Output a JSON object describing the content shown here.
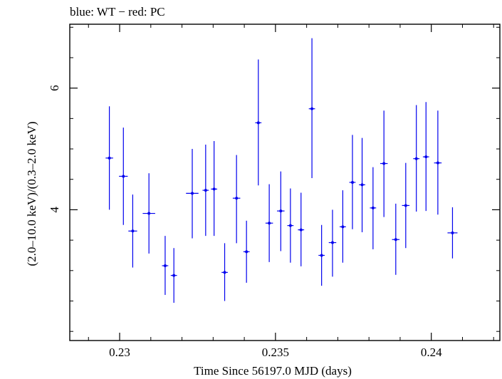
{
  "chart_data": {
    "type": "scatter",
    "title": "blue: WT − red: PC",
    "xlabel": "Time Since 56197.0 MJD (days)",
    "ylabel": "(2.0–10.0 keV)/(0.3–2.0 keV)",
    "xlim": [
      0.2284,
      0.2422
    ],
    "ylim": [
      1.85,
      7.05
    ],
    "xticks": [
      0.23,
      0.235,
      0.24
    ],
    "xtick_labels": [
      "0.23",
      "0.235",
      "0.24"
    ],
    "yticks": [
      4,
      6
    ],
    "ytick_labels": [
      "4",
      "6"
    ],
    "grid": false,
    "series": [
      {
        "color": "#0000ee",
        "points": [
          {
            "x": 0.22967,
            "y": 4.85,
            "xerr": 0.00012,
            "ylo": 4.0,
            "yhi": 5.7
          },
          {
            "x": 0.23012,
            "y": 4.55,
            "xerr": 0.00014,
            "ylo": 3.75,
            "yhi": 5.35
          },
          {
            "x": 0.23042,
            "y": 3.65,
            "xerr": 0.00014,
            "ylo": 3.05,
            "yhi": 4.25
          },
          {
            "x": 0.23094,
            "y": 3.94,
            "xerr": 0.0002,
            "ylo": 3.28,
            "yhi": 4.6
          },
          {
            "x": 0.23146,
            "y": 3.08,
            "xerr": 0.0001,
            "ylo": 2.6,
            "yhi": 3.57
          },
          {
            "x": 0.23174,
            "y": 2.92,
            "xerr": 0.0001,
            "ylo": 2.47,
            "yhi": 3.37
          },
          {
            "x": 0.23233,
            "y": 4.27,
            "xerr": 0.0002,
            "ylo": 3.53,
            "yhi": 5.0
          },
          {
            "x": 0.23276,
            "y": 4.32,
            "xerr": 0.0001,
            "ylo": 3.57,
            "yhi": 5.07
          },
          {
            "x": 0.23303,
            "y": 4.34,
            "xerr": 0.0001,
            "ylo": 3.57,
            "yhi": 5.13
          },
          {
            "x": 0.23337,
            "y": 2.97,
            "xerr": 0.0001,
            "ylo": 2.5,
            "yhi": 3.45
          },
          {
            "x": 0.23375,
            "y": 4.19,
            "xerr": 0.00012,
            "ylo": 3.45,
            "yhi": 4.9
          },
          {
            "x": 0.23407,
            "y": 3.31,
            "xerr": 0.0001,
            "ylo": 2.8,
            "yhi": 3.82
          },
          {
            "x": 0.23445,
            "y": 5.43,
            "xerr": 0.0001,
            "ylo": 4.4,
            "yhi": 6.47
          },
          {
            "x": 0.2348,
            "y": 3.78,
            "xerr": 0.00012,
            "ylo": 3.14,
            "yhi": 4.42
          },
          {
            "x": 0.23517,
            "y": 3.98,
            "xerr": 0.00012,
            "ylo": 3.32,
            "yhi": 4.63
          },
          {
            "x": 0.23548,
            "y": 3.74,
            "xerr": 0.0001,
            "ylo": 3.13,
            "yhi": 4.35
          },
          {
            "x": 0.23582,
            "y": 3.67,
            "xerr": 0.0001,
            "ylo": 3.07,
            "yhi": 4.28
          },
          {
            "x": 0.23617,
            "y": 5.66,
            "xerr": 0.0001,
            "ylo": 4.52,
            "yhi": 6.82
          },
          {
            "x": 0.23648,
            "y": 3.25,
            "xerr": 0.0001,
            "ylo": 2.75,
            "yhi": 3.75
          },
          {
            "x": 0.23683,
            "y": 3.46,
            "xerr": 0.00012,
            "ylo": 2.9,
            "yhi": 4.0
          },
          {
            "x": 0.23716,
            "y": 3.72,
            "xerr": 0.0001,
            "ylo": 3.13,
            "yhi": 4.32
          },
          {
            "x": 0.23747,
            "y": 4.45,
            "xerr": 0.0001,
            "ylo": 3.68,
            "yhi": 5.23
          },
          {
            "x": 0.23778,
            "y": 4.41,
            "xerr": 0.0001,
            "ylo": 3.63,
            "yhi": 5.18
          },
          {
            "x": 0.23813,
            "y": 4.03,
            "xerr": 0.0001,
            "ylo": 3.35,
            "yhi": 4.7
          },
          {
            "x": 0.23848,
            "y": 4.76,
            "xerr": 0.00012,
            "ylo": 3.88,
            "yhi": 5.63
          },
          {
            "x": 0.23886,
            "y": 3.51,
            "xerr": 0.00012,
            "ylo": 2.93,
            "yhi": 4.1
          },
          {
            "x": 0.23918,
            "y": 4.07,
            "xerr": 0.00012,
            "ylo": 3.37,
            "yhi": 4.77
          },
          {
            "x": 0.23952,
            "y": 4.84,
            "xerr": 0.0001,
            "ylo": 3.97,
            "yhi": 5.72
          },
          {
            "x": 0.23983,
            "y": 4.87,
            "xerr": 0.0001,
            "ylo": 3.98,
            "yhi": 5.77
          },
          {
            "x": 0.24021,
            "y": 4.77,
            "xerr": 0.00012,
            "ylo": 3.92,
            "yhi": 5.63
          },
          {
            "x": 0.24068,
            "y": 3.62,
            "xerr": 0.00016,
            "ylo": 3.2,
            "yhi": 4.04
          }
        ]
      }
    ]
  }
}
